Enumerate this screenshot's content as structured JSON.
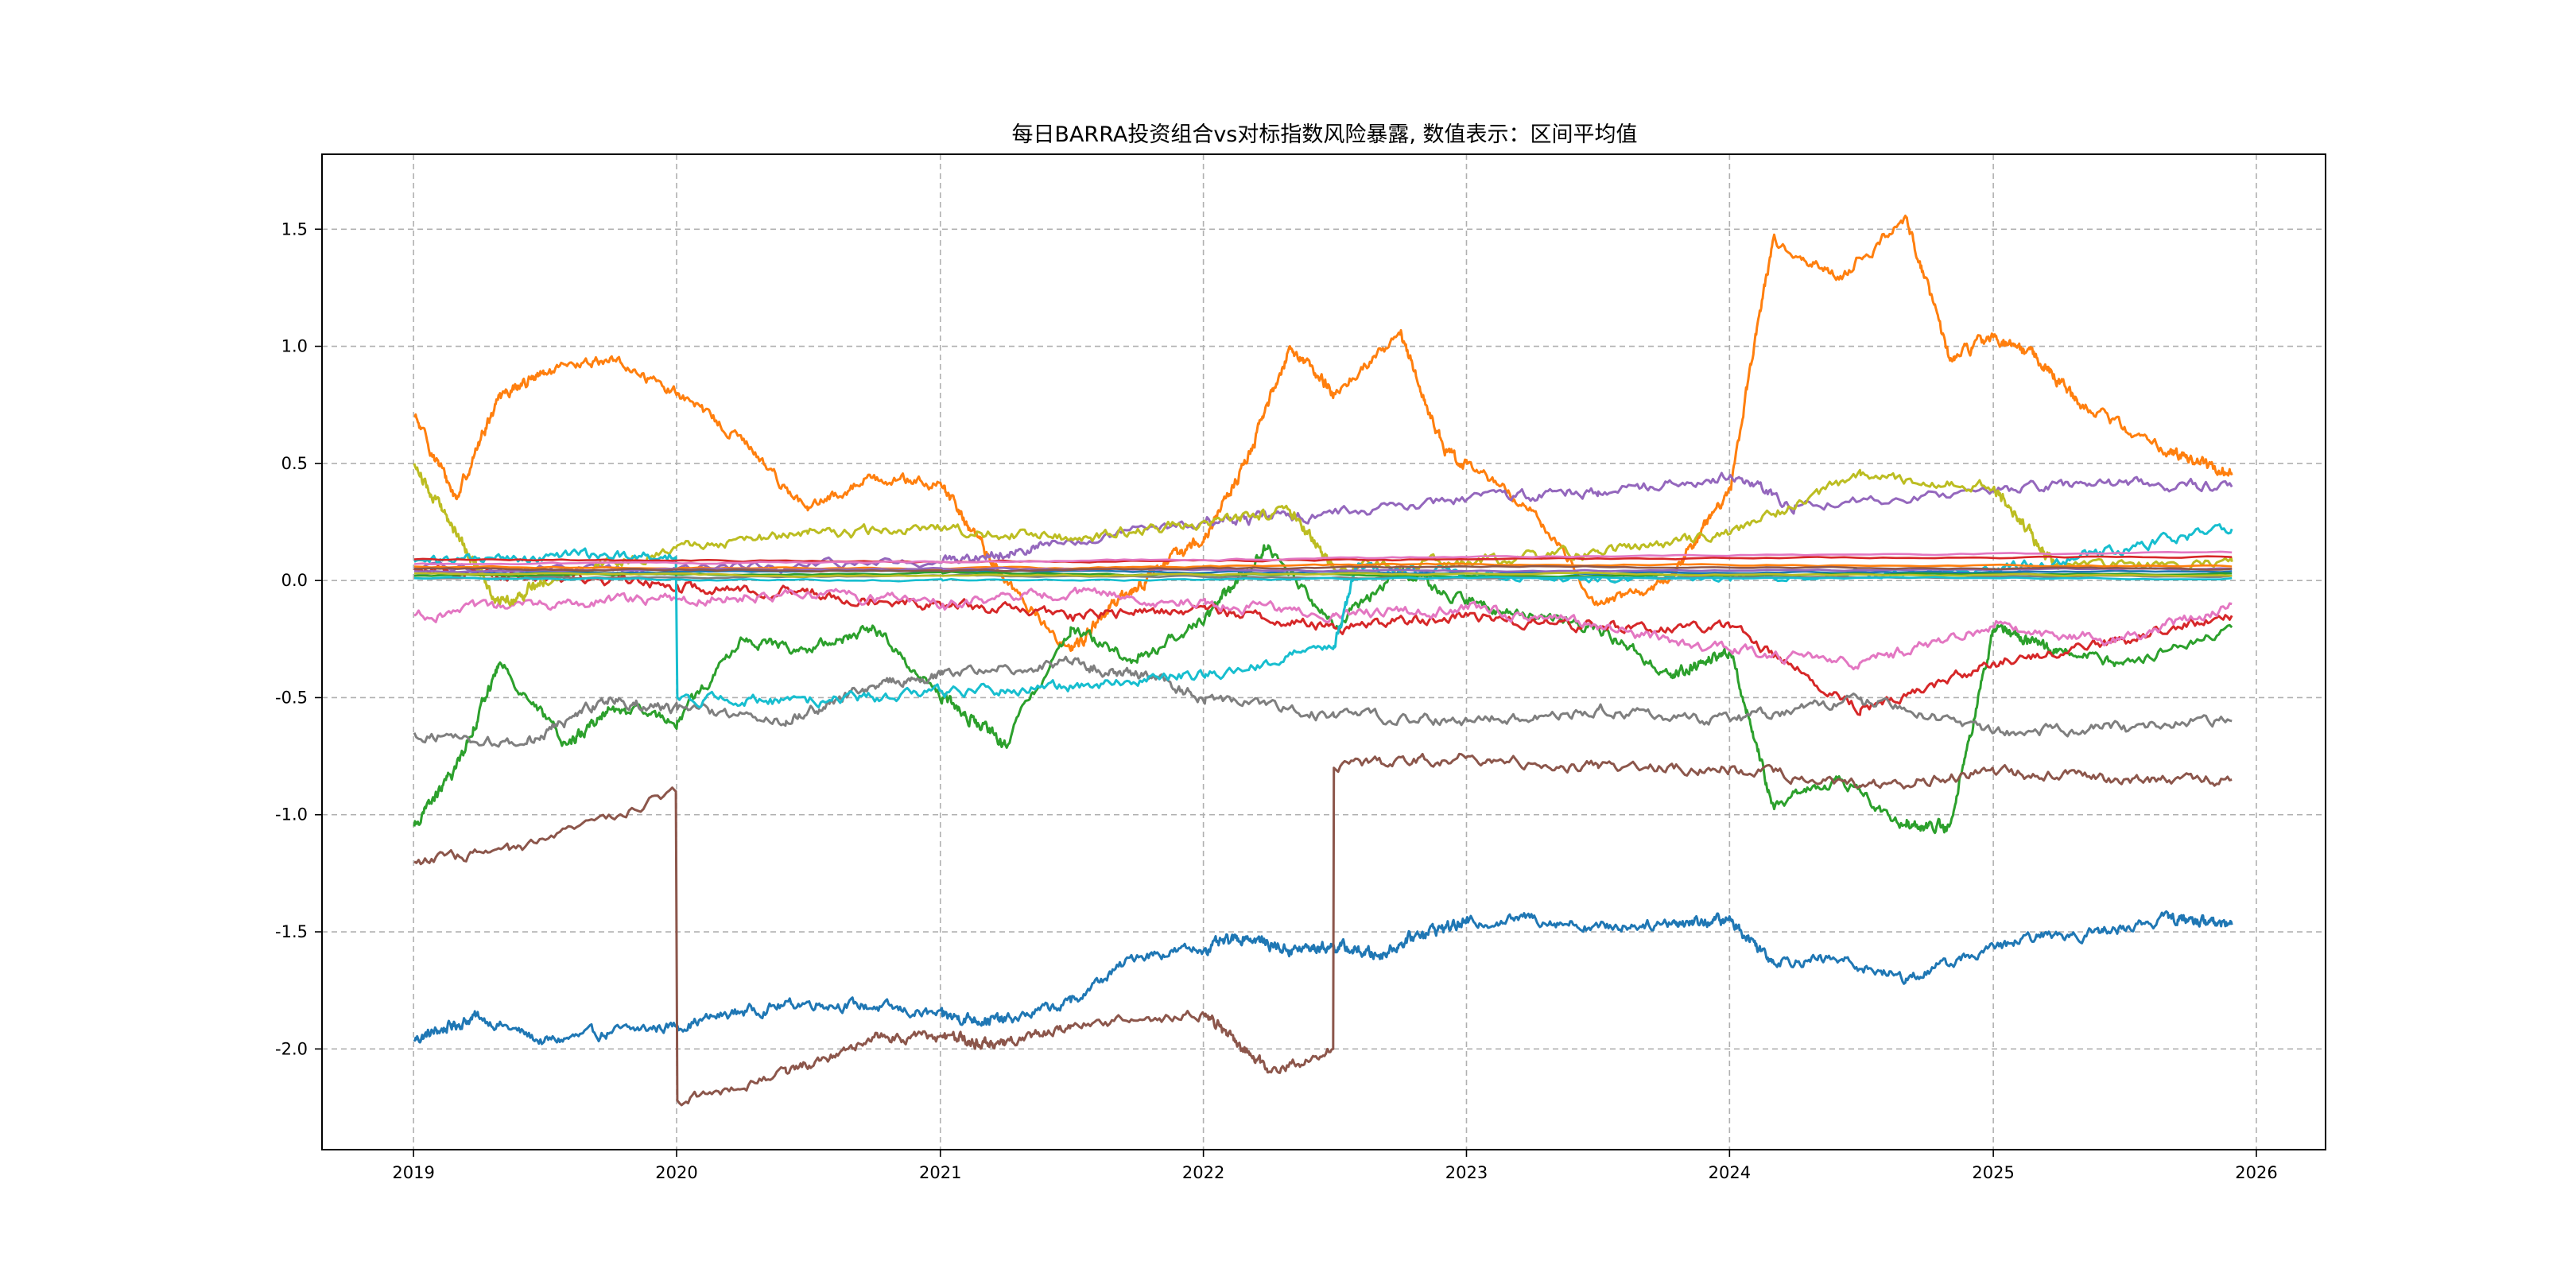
{
  "chart_data": {
    "type": "line",
    "title": "每日BARRA投资组合vs对标指数风险暴露, 数值表示：区间平均值",
    "xlabel": "",
    "ylabel": "",
    "x_ticks": [
      "2019",
      "2020",
      "2021",
      "2022",
      "2023",
      "2024",
      "2025",
      "2026"
    ],
    "y_ticks": [
      "-2.0",
      "-1.5",
      "-1.0",
      "-0.5",
      "0.0",
      "0.5",
      "1.0",
      "1.5"
    ],
    "xlim": [
      "2018-08-27",
      "2026-04-07"
    ],
    "ylim": [
      -2.43,
      1.82
    ],
    "grid": true,
    "legend": "none",
    "series": [
      {
        "color": "#1f77b4",
        "points": [
          [
            "2019-01-02",
            -1.96
          ],
          [
            "2019-04-01",
            -1.86
          ],
          [
            "2019-07-01",
            -1.97
          ],
          [
            "2019-10-01",
            -1.93
          ],
          [
            "2020-01-02",
            -1.9
          ],
          [
            "2020-04-01",
            -1.84
          ],
          [
            "2020-07-01",
            -1.8
          ],
          [
            "2020-10-01",
            -1.82
          ],
          [
            "2021-01-04",
            -1.86
          ],
          [
            "2021-04-01",
            -1.88
          ],
          [
            "2021-07-01",
            -1.8
          ],
          [
            "2021-10-01",
            -1.6
          ],
          [
            "2022-01-04",
            -1.57
          ],
          [
            "2022-03-01",
            -1.52
          ],
          [
            "2022-05-01",
            -1.58
          ],
          [
            "2022-07-01",
            -1.56
          ],
          [
            "2022-09-01",
            -1.6
          ],
          [
            "2022-11-01",
            -1.5
          ],
          [
            "2023-01-03",
            -1.46
          ],
          [
            "2023-04-03",
            -1.44
          ],
          [
            "2023-07-03",
            -1.48
          ],
          [
            "2023-10-09",
            -1.46
          ],
          [
            "2024-01-02",
            -1.45
          ],
          [
            "2024-03-01",
            -1.62
          ],
          [
            "2024-06-03",
            -1.62
          ],
          [
            "2024-09-02",
            -1.7
          ],
          [
            "2024-12-02",
            -1.6
          ],
          [
            "2025-03-03",
            -1.52
          ],
          [
            "2025-06-02",
            -1.5
          ],
          [
            "2025-09-01",
            -1.44
          ],
          [
            "2025-11-28",
            -1.47
          ]
        ]
      },
      {
        "color": "#ff7f0e",
        "points": [
          [
            "2019-01-02",
            0.7
          ],
          [
            "2019-03-01",
            0.35
          ],
          [
            "2019-05-01",
            0.8
          ],
          [
            "2019-07-01",
            0.88
          ],
          [
            "2019-10-01",
            0.95
          ],
          [
            "2020-01-02",
            0.8
          ],
          [
            "2020-04-01",
            0.6
          ],
          [
            "2020-07-01",
            0.3
          ],
          [
            "2020-10-01",
            0.45
          ],
          [
            "2021-01-04",
            0.4
          ],
          [
            "2021-04-01",
            0.0
          ],
          [
            "2021-07-01",
            -0.3
          ],
          [
            "2021-09-01",
            -0.1
          ],
          [
            "2021-11-01",
            0.05
          ],
          [
            "2022-01-04",
            0.2
          ],
          [
            "2022-03-01",
            0.5
          ],
          [
            "2022-05-01",
            1.0
          ],
          [
            "2022-07-01",
            0.8
          ],
          [
            "2022-10-01",
            1.05
          ],
          [
            "2022-12-01",
            0.55
          ],
          [
            "2023-01-03",
            0.5
          ],
          [
            "2023-04-03",
            0.3
          ],
          [
            "2023-07-03",
            -0.1
          ],
          [
            "2023-10-09",
            0.0
          ],
          [
            "2024-01-02",
            0.4
          ],
          [
            "2024-03-01",
            1.45
          ],
          [
            "2024-06-03",
            1.3
          ],
          [
            "2024-09-02",
            1.55
          ],
          [
            "2024-11-01",
            0.95
          ],
          [
            "2025-01-02",
            1.05
          ],
          [
            "2025-03-03",
            0.95
          ],
          [
            "2025-05-05",
            0.75
          ],
          [
            "2025-09-01",
            0.55
          ],
          [
            "2025-11-28",
            0.45
          ]
        ]
      },
      {
        "color": "#2ca02c",
        "points": [
          [
            "2019-01-02",
            -1.05
          ],
          [
            "2019-03-01",
            -0.8
          ],
          [
            "2019-05-01",
            -0.35
          ],
          [
            "2019-08-01",
            -0.7
          ],
          [
            "2019-10-01",
            -0.55
          ],
          [
            "2020-01-02",
            -0.6
          ],
          [
            "2020-04-01",
            -0.25
          ],
          [
            "2020-07-01",
            -0.3
          ],
          [
            "2020-10-01",
            -0.2
          ],
          [
            "2021-01-04",
            -0.5
          ],
          [
            "2021-04-01",
            -0.7
          ],
          [
            "2021-07-01",
            -0.2
          ],
          [
            "2021-10-01",
            -0.35
          ],
          [
            "2022-01-04",
            -0.15
          ],
          [
            "2022-04-01",
            0.15
          ],
          [
            "2022-07-01",
            -0.2
          ],
          [
            "2022-10-01",
            0.05
          ],
          [
            "2023-01-03",
            -0.1
          ],
          [
            "2023-04-03",
            -0.15
          ],
          [
            "2023-07-03",
            -0.2
          ],
          [
            "2023-10-09",
            -0.4
          ],
          [
            "2024-01-02",
            -0.3
          ],
          [
            "2024-03-01",
            -0.95
          ],
          [
            "2024-06-03",
            -0.85
          ],
          [
            "2024-09-02",
            -1.05
          ],
          [
            "2024-11-01",
            -1.05
          ],
          [
            "2025-01-02",
            -0.2
          ],
          [
            "2025-04-01",
            -0.3
          ],
          [
            "2025-07-01",
            -0.35
          ],
          [
            "2025-11-28",
            -0.2
          ]
        ]
      },
      {
        "color": "#d62728",
        "points": [
          [
            "2019-01-02",
            0.05
          ],
          [
            "2019-07-01",
            0.02
          ],
          [
            "2020-01-02",
            -0.02
          ],
          [
            "2020-07-01",
            -0.05
          ],
          [
            "2021-01-04",
            -0.1
          ],
          [
            "2021-07-01",
            -0.15
          ],
          [
            "2022-01-04",
            -0.12
          ],
          [
            "2022-07-01",
            -0.2
          ],
          [
            "2023-01-03",
            -0.15
          ],
          [
            "2023-07-03",
            -0.2
          ],
          [
            "2024-01-02",
            -0.2
          ],
          [
            "2024-07-01",
            -0.55
          ],
          [
            "2025-01-02",
            -0.35
          ],
          [
            "2025-07-01",
            -0.25
          ],
          [
            "2025-11-28",
            -0.15
          ]
        ]
      },
      {
        "color": "#9467bd",
        "points": [
          [
            "2019-01-02",
            0.05
          ],
          [
            "2020-01-02",
            0.05
          ],
          [
            "2021-01-04",
            0.08
          ],
          [
            "2021-06-01",
            0.15
          ],
          [
            "2022-01-04",
            0.25
          ],
          [
            "2022-06-01",
            0.28
          ],
          [
            "2023-01-03",
            0.35
          ],
          [
            "2023-07-03",
            0.38
          ],
          [
            "2024-01-02",
            0.45
          ],
          [
            "2024-04-01",
            0.32
          ],
          [
            "2025-01-02",
            0.38
          ],
          [
            "2025-07-01",
            0.42
          ],
          [
            "2025-11-28",
            0.4
          ]
        ]
      },
      {
        "color": "#8c564b",
        "points": [
          [
            "2019-01-02",
            -1.2
          ],
          [
            "2019-06-01",
            -1.15
          ],
          [
            "2019-12-31",
            -0.9
          ],
          [
            "2020-01-02",
            -2.22
          ],
          [
            "2020-06-01",
            -2.1
          ],
          [
            "2020-10-01",
            -1.95
          ],
          [
            "2021-01-04",
            -1.95
          ],
          [
            "2021-04-01",
            -1.98
          ],
          [
            "2021-07-01",
            -1.9
          ],
          [
            "2022-01-04",
            -1.85
          ],
          [
            "2022-04-01",
            -2.1
          ],
          [
            "2022-06-30",
            -2.0
          ],
          [
            "2022-07-01",
            -0.8
          ],
          [
            "2023-01-03",
            -0.75
          ],
          [
            "2023-07-03",
            -0.8
          ],
          [
            "2024-01-02",
            -0.8
          ],
          [
            "2024-07-01",
            -0.88
          ],
          [
            "2025-01-02",
            -0.82
          ],
          [
            "2025-07-01",
            -0.85
          ],
          [
            "2025-11-28",
            -0.85
          ]
        ]
      },
      {
        "color": "#e377c2",
        "points": [
          [
            "2019-01-02",
            -0.15
          ],
          [
            "2019-07-01",
            -0.1
          ],
          [
            "2020-01-02",
            -0.08
          ],
          [
            "2020-07-01",
            -0.05
          ],
          [
            "2021-01-04",
            -0.1
          ],
          [
            "2021-07-01",
            -0.05
          ],
          [
            "2022-01-04",
            -0.1
          ],
          [
            "2022-07-01",
            -0.15
          ],
          [
            "2023-01-03",
            -0.12
          ],
          [
            "2023-07-03",
            -0.2
          ],
          [
            "2024-01-02",
            -0.3
          ],
          [
            "2024-07-01",
            -0.35
          ],
          [
            "2025-01-02",
            -0.2
          ],
          [
            "2025-07-01",
            -0.25
          ],
          [
            "2025-11-28",
            -0.1
          ]
        ]
      },
      {
        "color": "#7f7f7f",
        "points": [
          [
            "2019-01-02",
            -0.65
          ],
          [
            "2019-06-01",
            -0.7
          ],
          [
            "2019-10-01",
            -0.5
          ],
          [
            "2020-01-02",
            -0.55
          ],
          [
            "2020-06-01",
            -0.6
          ],
          [
            "2020-10-01",
            -0.45
          ],
          [
            "2021-01-04",
            -0.4
          ],
          [
            "2021-07-01",
            -0.35
          ],
          [
            "2021-10-01",
            -0.4
          ],
          [
            "2022-01-04",
            -0.5
          ],
          [
            "2022-07-01",
            -0.58
          ],
          [
            "2023-01-03",
            -0.6
          ],
          [
            "2023-07-03",
            -0.55
          ],
          [
            "2024-01-02",
            -0.6
          ],
          [
            "2024-07-01",
            -0.5
          ],
          [
            "2025-01-02",
            -0.65
          ],
          [
            "2025-07-01",
            -0.62
          ],
          [
            "2025-11-28",
            -0.6
          ]
        ]
      },
      {
        "color": "#bcbd22",
        "points": [
          [
            "2019-01-02",
            0.5
          ],
          [
            "2019-03-01",
            0.2
          ],
          [
            "2019-05-01",
            -0.1
          ],
          [
            "2019-07-01",
            0.0
          ],
          [
            "2020-01-02",
            0.15
          ],
          [
            "2020-07-01",
            0.2
          ],
          [
            "2021-01-04",
            0.22
          ],
          [
            "2021-07-01",
            0.18
          ],
          [
            "2022-01-04",
            0.25
          ],
          [
            "2022-05-01",
            0.3
          ],
          [
            "2022-07-01",
            0.05
          ],
          [
            "2023-01-03",
            0.08
          ],
          [
            "2023-07-03",
            0.12
          ],
          [
            "2024-01-02",
            0.2
          ],
          [
            "2024-07-01",
            0.45
          ],
          [
            "2025-01-02",
            0.4
          ],
          [
            "2025-04-01",
            0.05
          ],
          [
            "2025-11-28",
            0.08
          ]
        ]
      },
      {
        "color": "#17becf",
        "points": [
          [
            "2019-01-02",
            0.08
          ],
          [
            "2019-07-01",
            0.1
          ],
          [
            "2019-12-31",
            0.1
          ],
          [
            "2020-01-02",
            -0.5
          ],
          [
            "2020-07-01",
            -0.52
          ],
          [
            "2021-01-04",
            -0.48
          ],
          [
            "2021-07-01",
            -0.45
          ],
          [
            "2022-01-04",
            -0.4
          ],
          [
            "2022-07-01",
            -0.28
          ],
          [
            "2022-08-01",
            0.05
          ],
          [
            "2023-01-03",
            0.02
          ],
          [
            "2024-01-02",
            0.0
          ],
          [
            "2025-01-02",
            0.05
          ],
          [
            "2025-06-02",
            0.12
          ],
          [
            "2025-11-28",
            0.22
          ]
        ]
      },
      {
        "color": "#1f77b4",
        "points": [
          [
            "2019-01-02",
            0.03
          ],
          [
            "2021-01-04",
            0.04
          ],
          [
            "2023-01-03",
            0.03
          ],
          [
            "2025-11-28",
            0.04
          ]
        ]
      },
      {
        "color": "#ff7f0e",
        "points": [
          [
            "2019-01-02",
            0.06
          ],
          [
            "2021-01-04",
            0.05
          ],
          [
            "2023-01-03",
            0.07
          ],
          [
            "2025-11-28",
            0.06
          ]
        ]
      },
      {
        "color": "#2ca02c",
        "points": [
          [
            "2019-01-02",
            0.02
          ],
          [
            "2021-01-04",
            0.03
          ],
          [
            "2023-01-03",
            0.02
          ],
          [
            "2025-11-28",
            0.03
          ]
        ]
      },
      {
        "color": "#d62728",
        "points": [
          [
            "2019-01-02",
            0.09
          ],
          [
            "2021-01-04",
            0.08
          ],
          [
            "2023-01-03",
            0.09
          ],
          [
            "2025-11-28",
            0.1
          ]
        ]
      },
      {
        "color": "#9467bd",
        "points": [
          [
            "2019-01-02",
            0.04
          ],
          [
            "2021-01-04",
            0.05
          ],
          [
            "2023-01-03",
            0.04
          ],
          [
            "2025-11-28",
            0.05
          ]
        ]
      },
      {
        "color": "#8c564b",
        "points": [
          [
            "2019-01-02",
            0.05
          ],
          [
            "2021-01-04",
            0.04
          ],
          [
            "2023-01-03",
            0.06
          ],
          [
            "2025-11-28",
            0.05
          ]
        ]
      },
      {
        "color": "#e377c2",
        "points": [
          [
            "2019-01-02",
            0.07
          ],
          [
            "2021-01-04",
            0.08
          ],
          [
            "2023-01-03",
            0.1
          ],
          [
            "2025-11-28",
            0.12
          ]
        ]
      },
      {
        "color": "#7f7f7f",
        "points": [
          [
            "2019-01-02",
            0.01
          ],
          [
            "2021-01-04",
            0.02
          ],
          [
            "2023-01-03",
            0.01
          ],
          [
            "2025-11-28",
            0.02
          ]
        ]
      },
      {
        "color": "#bcbd22",
        "points": [
          [
            "2019-01-02",
            0.03
          ],
          [
            "2021-01-04",
            0.02
          ],
          [
            "2023-01-03",
            0.03
          ],
          [
            "2025-11-28",
            0.02
          ]
        ]
      },
      {
        "color": "#17becf",
        "points": [
          [
            "2019-01-02",
            0.01
          ],
          [
            "2021-01-04",
            0.0
          ],
          [
            "2023-01-03",
            0.01
          ],
          [
            "2025-11-28",
            0.01
          ]
        ]
      }
    ]
  }
}
